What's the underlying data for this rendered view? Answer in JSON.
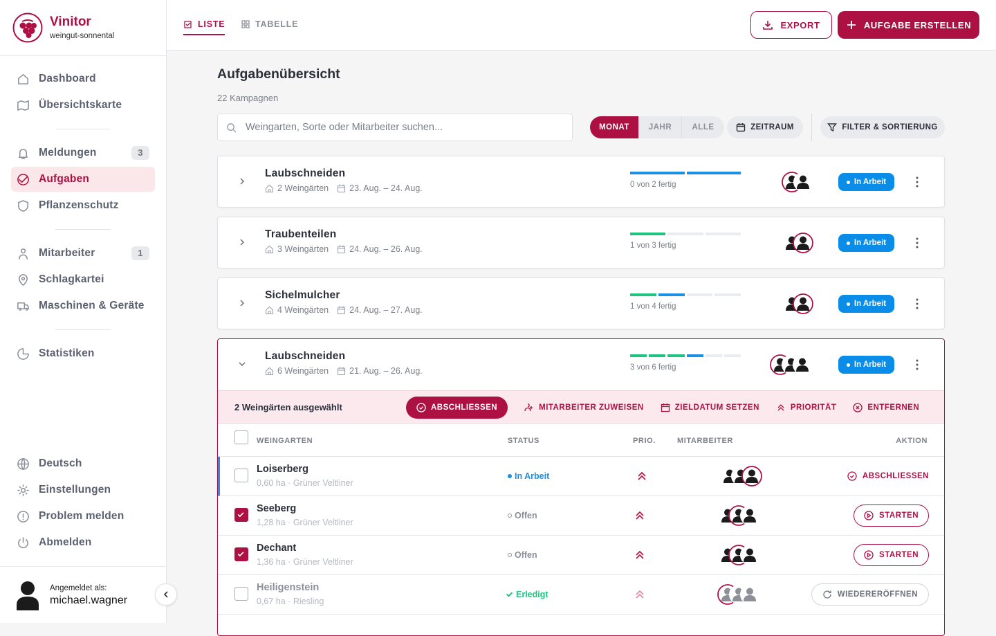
{
  "brand": {
    "name": "Vinitor",
    "tenant": "weingut-sonnental"
  },
  "nav": {
    "groups": [
      [
        {
          "label": "Dashboard"
        },
        {
          "label": "Übersichtskarte"
        }
      ],
      [
        {
          "label": "Meldungen",
          "badge": 3
        },
        {
          "label": "Aufgaben",
          "active": true
        },
        {
          "label": "Pflanzenschutz"
        }
      ],
      [
        {
          "label": "Mitarbeiter",
          "badge": 1
        },
        {
          "label": "Schlagkartei"
        },
        {
          "label": "Maschinen & Geräte"
        }
      ],
      [
        {
          "label": "Statistiken"
        }
      ]
    ],
    "bottom": [
      {
        "label": "Deutsch"
      },
      {
        "label": "Einstellungen"
      },
      {
        "label": "Problem melden"
      },
      {
        "label": "Abmelden"
      }
    ]
  },
  "user": {
    "label": "Angemeldet als:",
    "name": "michael.wagner"
  },
  "tabs": [
    "LISTE",
    "TABELLE"
  ],
  "header_actions": {
    "export": "EXPORT",
    "create": "AUFGABE ERSTELLEN"
  },
  "page": {
    "title": "Aufgabenübersicht",
    "count": "22 Kampagnen"
  },
  "search_placeholder": "Weingarten, Sorte oder Mitarbeiter suchen...",
  "periods": [
    "MONAT",
    "JAHR",
    "ALLE"
  ],
  "range_button": "ZEITRAUM",
  "filter_button": "FILTER & SORTIERUNG",
  "tasks": [
    {
      "name": "Laubschneiden",
      "vineyards": "2 Weingärten",
      "dates": "23. Aug. – 24. Aug.",
      "progress": "0 von 2 fertig",
      "status": "In Arbeit",
      "segment_colors": [
        "#1a8fe3",
        "#1a8fe3"
      ]
    },
    {
      "name": "Traubenteilen",
      "vineyards": "3 Weingärten",
      "dates": "24. Aug. – 26. Aug.",
      "progress": "1 von 3 fertig",
      "status": "In Arbeit",
      "segment_colors": [
        "#1fc47f",
        "#e9ecf0",
        "#e9ecf0"
      ]
    },
    {
      "name": "Sichelmulcher",
      "vineyards": "4 Weingärten",
      "dates": "24. Aug. – 27. Aug.",
      "progress": "1 von 4 fertig",
      "status": "In Arbeit",
      "segment_colors": [
        "#1fc47f",
        "#1a8fe3",
        "#e9ecf0",
        "#e9ecf0"
      ]
    },
    {
      "name": "Laubschneiden",
      "vineyards": "6 Weingärten",
      "dates": "21. Aug. – 26. Aug.",
      "progress": "3 von 6 fertig",
      "status": "In Arbeit",
      "segment_colors": [
        "#1fc47f",
        "#1fc47f",
        "#1fc47f",
        "#1a8fe3",
        "#e9ecf0",
        "#e9ecf0"
      ],
      "expanded": true
    }
  ],
  "selection": {
    "label": "2 Weingärten ausgewählt",
    "actions": [
      "ABSCHLIESSEN",
      "MITARBEITER ZUWEISEN",
      "ZIELDATUM SETZEN",
      "PRIORITÄT",
      "ENTFERNEN"
    ]
  },
  "columns": [
    "WEINGARTEN",
    "STATUS",
    "PRIO.",
    "MITARBEITER",
    "AKTION"
  ],
  "rows": [
    {
      "name": "Loiserberg",
      "details": "0,60 ha · Grüner Veltliner",
      "status": "In Arbeit",
      "status_color": "#1a8fe3",
      "action": "ABSCHLIESSEN",
      "selected": false
    },
    {
      "name": "Seeberg",
      "details": "1,28 ha · Grüner Veltliner",
      "status": "Offen",
      "status_color": "#8a8f98",
      "action": "STARTEN",
      "selected": true
    },
    {
      "name": "Dechant",
      "details": "1,36 ha · Grüner Veltliner",
      "status": "Offen",
      "status_color": "#8a8f98",
      "action": "STARTEN",
      "selected": true
    },
    {
      "name": "Heiligenstein",
      "details": "0,67 ha · Riesling",
      "status": "Erledigt",
      "status_color": "#1fc47f",
      "action": "WIEDERERÖFFNEN",
      "selected": false
    }
  ]
}
